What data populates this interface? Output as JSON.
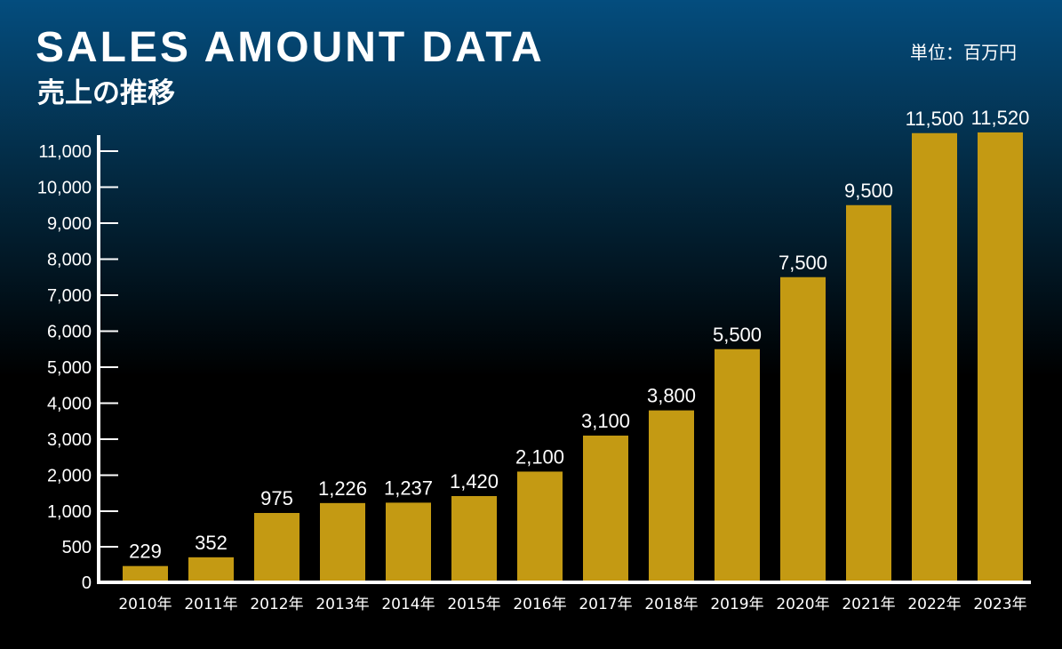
{
  "header": {
    "title": "SALES AMOUNT DATA",
    "subtitle": "売上の推移",
    "unit": "単位：百万円"
  },
  "colors": {
    "bar": "#c49a13",
    "axis": "#ffffff",
    "text": "#ffffff"
  },
  "chart_data": {
    "type": "bar",
    "title": "SALES AMOUNT DATA",
    "subtitle": "売上の推移",
    "unit": "単位：百万円",
    "categories": [
      "2010年",
      "2011年",
      "2012年",
      "2013年",
      "2014年",
      "2015年",
      "2016年",
      "2017年",
      "2018年",
      "2019年",
      "2020年",
      "2021年",
      "2022年",
      "2023年"
    ],
    "values": [
      229,
      352,
      975,
      1226,
      1237,
      1420,
      2100,
      3100,
      3800,
      5500,
      7500,
      9500,
      11500,
      11520
    ],
    "value_labels": [
      "229",
      "352",
      "975",
      "1,226",
      "1,237",
      "1,420",
      "2,100",
      "3,100",
      "3,800",
      "5,500",
      "7,500",
      "9,500",
      "11,500",
      "11,520"
    ],
    "y_ticks": [
      0,
      500,
      1000,
      2000,
      3000,
      4000,
      5000,
      6000,
      7000,
      8000,
      9000,
      10000,
      11000
    ],
    "y_tick_labels": [
      "0",
      "500",
      "1,000",
      "2,000",
      "3,000",
      "4,000",
      "5,000",
      "6,000",
      "7,000",
      "8,000",
      "9,000",
      "10,000",
      "11,000"
    ],
    "xlabel": "",
    "ylabel": "",
    "grid": false,
    "legend": "none"
  }
}
